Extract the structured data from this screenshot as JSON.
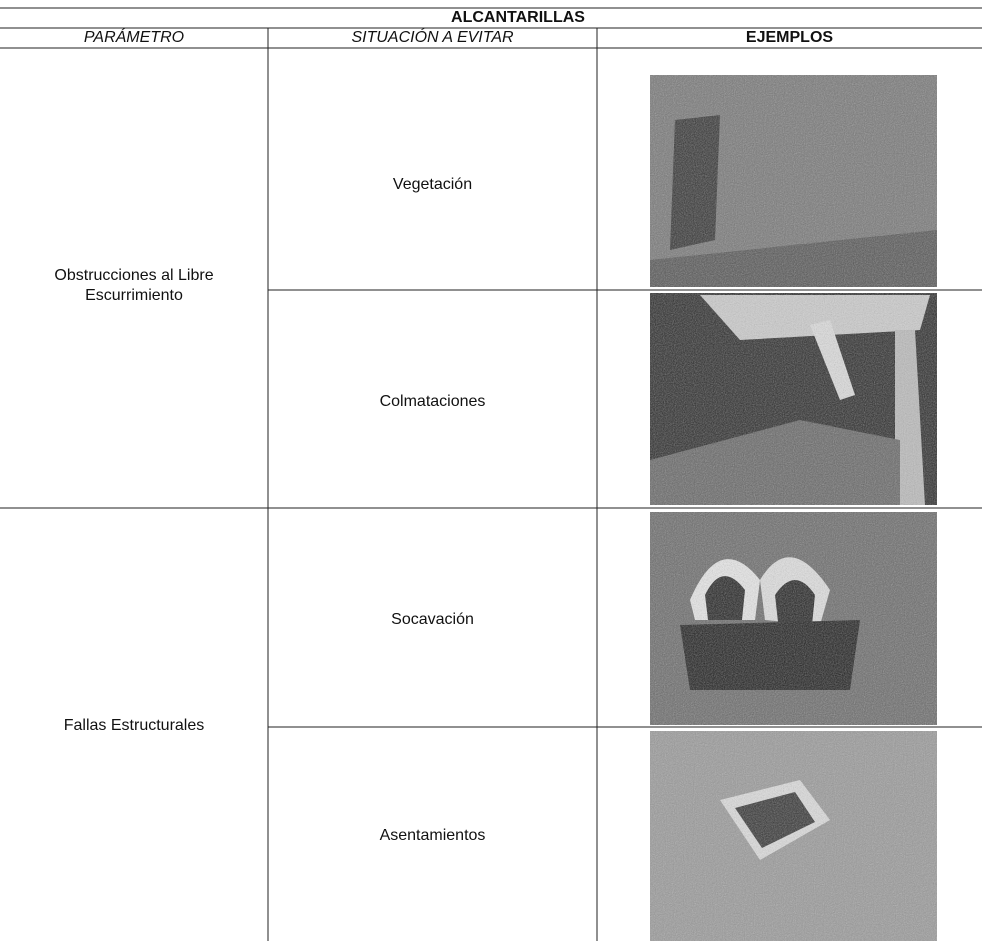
{
  "table": {
    "title": "ALCANTARILLAS",
    "headers": [
      "PARÁMETRO",
      "SITUACIÓN A EVITAR",
      "EJEMPLOS"
    ],
    "groups": [
      {
        "parameter": "Obstrucciones al Libre Escurrimiento",
        "situations": [
          "Vegetación",
          "Colmataciones"
        ]
      },
      {
        "parameter": "Fallas Estructurales",
        "situations": [
          "Socavación",
          "Asentamientos"
        ]
      }
    ]
  }
}
